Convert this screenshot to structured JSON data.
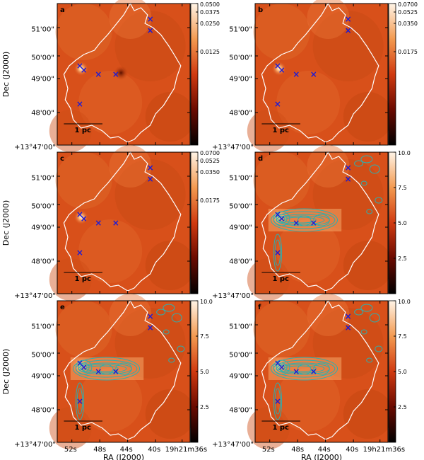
{
  "figure": {
    "x_axis_title": "RA (J2000)",
    "y_axis_title": "Dec (J2000)",
    "ra_ticks": [
      "52s",
      "48s",
      "44s",
      "40s",
      "19h21m36s"
    ],
    "dec_ticks": [
      "51'00\"",
      "50'00\"",
      "49'00\"",
      "48'00\"",
      "+13°47'00\""
    ],
    "scale_bar_label": "1 pc",
    "colors": {
      "map_base": "#d8501a",
      "boundary": "#ffffff",
      "markers": "#1a1ad8",
      "contours": "#2ab0b0"
    },
    "icons": {
      "marker": "x-cross-marker-icon"
    }
  },
  "panels": [
    {
      "id": "a",
      "label": "a",
      "colorbar_ticks": [
        "0.0500",
        "0.0375",
        "0.0250",
        "0.0125"
      ],
      "contours": false
    },
    {
      "id": "b",
      "label": "b",
      "colorbar_ticks": [
        "0.0700",
        "0.0525",
        "0.0350",
        "0.0175"
      ],
      "contours": false
    },
    {
      "id": "c",
      "label": "c",
      "colorbar_ticks": [
        "0.0700",
        "0.0525",
        "0.0350",
        "0.0175"
      ],
      "contours": false
    },
    {
      "id": "d",
      "label": "d",
      "colorbar_ticks": [
        "10.0",
        "7.5",
        "5.0",
        "2.5"
      ],
      "contours": true
    },
    {
      "id": "e",
      "label": "e",
      "colorbar_ticks": [
        "10.0",
        "7.5",
        "5.0",
        "2.5"
      ],
      "contours": true
    },
    {
      "id": "f",
      "label": "f",
      "colorbar_ticks": [
        "10.0",
        "7.5",
        "5.0",
        "2.5"
      ],
      "contours": true
    }
  ]
}
